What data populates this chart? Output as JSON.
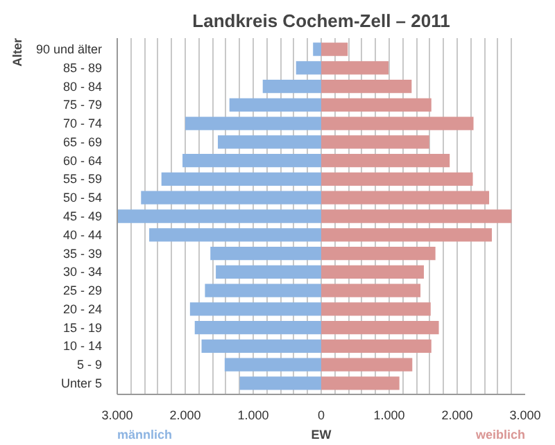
{
  "chart_data": {
    "type": "bar",
    "orientation": "horizontal",
    "stacked": true,
    "title": "Landkreis Cochem-Zell – 2011",
    "xlabel": "EW",
    "ylabel": "Alter",
    "categories": [
      "90 und älter",
      "85 - 89",
      "80 - 84",
      "75 - 79",
      "70 - 74",
      "65 - 69",
      "60 - 64",
      "55 - 59",
      "50 - 54",
      "45 - 49",
      "40 - 44",
      "35 - 39",
      "30 - 34",
      "25 - 29",
      "20 - 24",
      "15 - 19",
      "10 - 14",
      "5 - 9",
      "Unter 5"
    ],
    "series": [
      {
        "name": "männlich",
        "color": "#8db4e2",
        "values": [
          -120,
          -370,
          -860,
          -1350,
          -2000,
          -1520,
          -2040,
          -2350,
          -2650,
          -3000,
          -2530,
          -1630,
          -1550,
          -1710,
          -1930,
          -1860,
          -1760,
          -1420,
          -1200
        ]
      },
      {
        "name": "weiblich",
        "color": "#da9694",
        "values": [
          390,
          990,
          1330,
          1620,
          2240,
          1590,
          1890,
          2230,
          2470,
          2800,
          2510,
          1680,
          1510,
          1460,
          1610,
          1730,
          1620,
          1340,
          1150
        ]
      }
    ],
    "xlim": [
      -3000,
      3000
    ],
    "xticks": [
      {
        "value": -3000,
        "label": "3.000"
      },
      {
        "value": -2800,
        "label": null
      },
      {
        "value": -2600,
        "label": null
      },
      {
        "value": -2400,
        "label": null
      },
      {
        "value": -2200,
        "label": null
      },
      {
        "value": -2000,
        "label": "2.000"
      },
      {
        "value": -1800,
        "label": null
      },
      {
        "value": -1600,
        "label": null
      },
      {
        "value": -1400,
        "label": null
      },
      {
        "value": -1200,
        "label": null
      },
      {
        "value": -1000,
        "label": "1.000"
      },
      {
        "value": -800,
        "label": null
      },
      {
        "value": -600,
        "label": null
      },
      {
        "value": -400,
        "label": null
      },
      {
        "value": -200,
        "label": null
      },
      0,
      {
        "value": 200,
        "label": null
      },
      {
        "value": 400,
        "label": null
      },
      {
        "value": 600,
        "label": null
      },
      {
        "value": 800,
        "label": null
      },
      {
        "value": 1000,
        "label": "1.000"
      },
      {
        "value": 1200,
        "label": null
      },
      {
        "value": 1400,
        "label": null
      },
      {
        "value": 1600,
        "label": null
      },
      {
        "value": 1800,
        "label": null
      },
      {
        "value": 2000,
        "label": "2.000"
      },
      {
        "value": 2200,
        "label": null
      },
      {
        "value": 2400,
        "label": null
      },
      {
        "value": 2600,
        "label": null
      },
      {
        "value": 2800,
        "label": null
      },
      {
        "value": 3000,
        "label": "3.000"
      }
    ],
    "grid": "x",
    "legend": false
  }
}
